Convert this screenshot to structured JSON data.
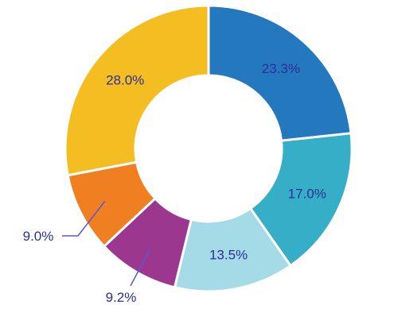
{
  "chart_data": {
    "type": "pie",
    "donut": true,
    "slices": [
      {
        "value": 23.3,
        "label": "23.3%",
        "color": "#2378be"
      },
      {
        "value": 17.0,
        "label": "17.0%",
        "color": "#36aec8"
      },
      {
        "value": 13.5,
        "label": "13.5%",
        "color": "#a4dbe7"
      },
      {
        "value": 9.2,
        "label": "9.2%",
        "color": "#9b378f"
      },
      {
        "value": 9.0,
        "label": "9.0%",
        "color": "#f07f22"
      },
      {
        "value": 28.0,
        "label": "28.0%",
        "color": "#f4be22"
      }
    ],
    "label_color": "#2b2f9a",
    "leader_color": "#5856d6",
    "start_angle_deg": 0,
    "direction": "clockwise"
  }
}
